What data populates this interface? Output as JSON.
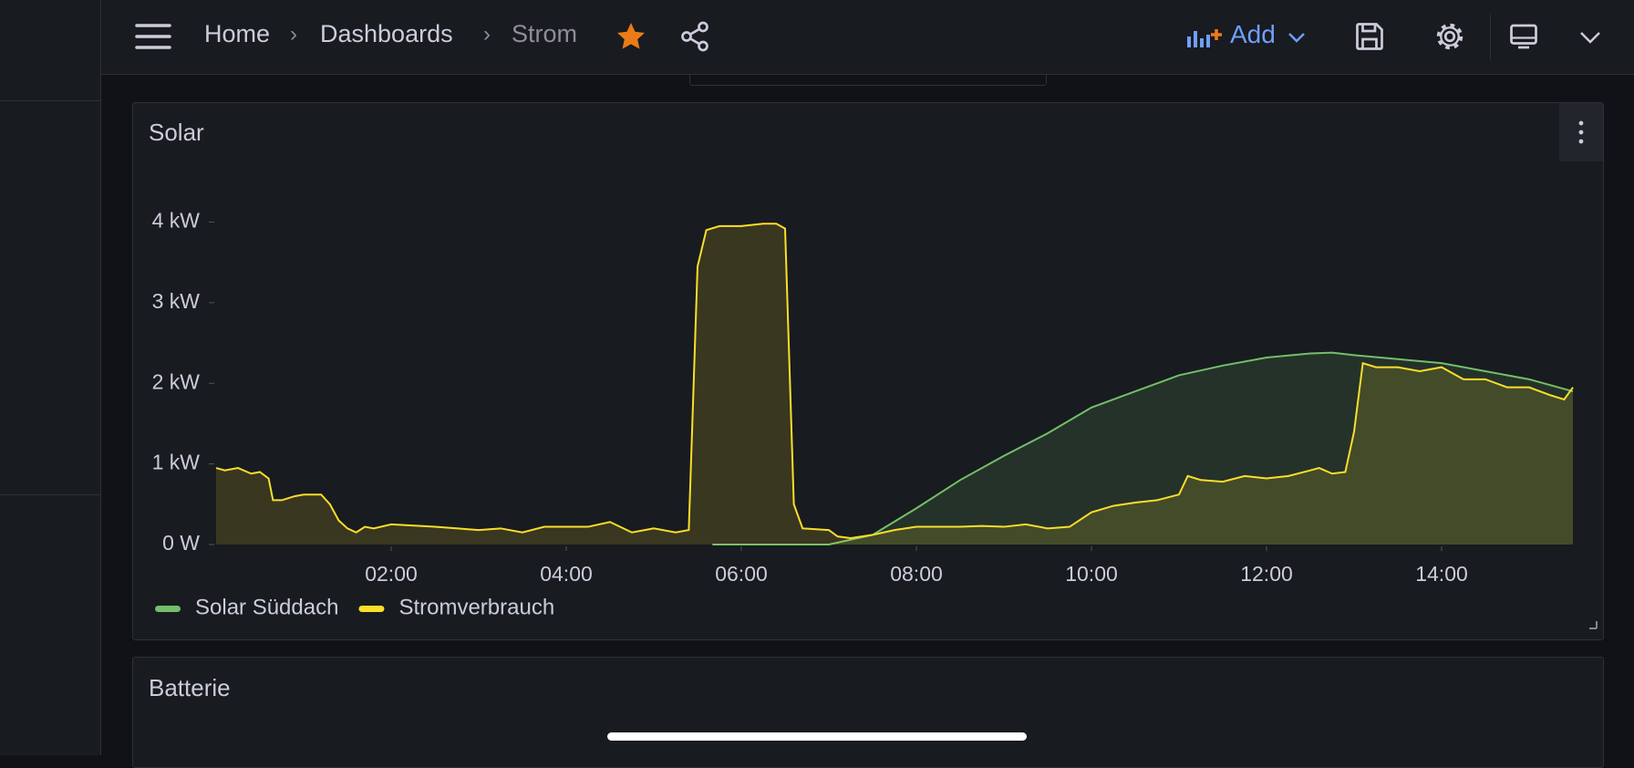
{
  "header": {
    "breadcrumbs": [
      "Home",
      "Dashboards",
      "Strom"
    ],
    "add": "Add"
  },
  "panels": {
    "second_title": "Batterie"
  },
  "chart_data": {
    "type": "line",
    "title": "Solar",
    "xlim": [
      0,
      15.5
    ],
    "xticks": [
      {
        "value": 2,
        "label": "02:00"
      },
      {
        "value": 4,
        "label": "04:00"
      },
      {
        "value": 6,
        "label": "06:00"
      },
      {
        "value": 8,
        "label": "08:00"
      },
      {
        "value": 10,
        "label": "10:00"
      },
      {
        "value": 12,
        "label": "12:00"
      },
      {
        "value": 14,
        "label": "14:00"
      }
    ],
    "ylim": [
      0,
      4.3
    ],
    "yticks": [
      {
        "value": 0,
        "label": "0 W"
      },
      {
        "value": 1,
        "label": "1 kW"
      },
      {
        "value": 2,
        "label": "2 kW"
      },
      {
        "value": 3,
        "label": "3 kW"
      },
      {
        "value": 4,
        "label": "4 kW"
      }
    ],
    "legend": "bottom-left",
    "series": [
      {
        "name": "Solar Süddach",
        "color": "#73bf69",
        "x": [
          5.67,
          6.0,
          6.5,
          7.0,
          7.5,
          8.0,
          8.5,
          9.0,
          9.5,
          10.0,
          10.5,
          11.0,
          11.5,
          12.0,
          12.5,
          12.75,
          13.0,
          13.5,
          14.0,
          14.5,
          15.0,
          15.5
        ],
        "values": [
          0,
          0,
          0,
          0,
          0.12,
          0.45,
          0.8,
          1.1,
          1.38,
          1.7,
          1.9,
          2.1,
          2.22,
          2.32,
          2.37,
          2.38,
          2.35,
          2.3,
          2.25,
          2.15,
          2.05,
          1.9
        ]
      },
      {
        "name": "Stromverbrauch",
        "color": "#fade2a",
        "x": [
          0,
          0.1,
          0.25,
          0.4,
          0.5,
          0.6,
          0.65,
          0.75,
          0.9,
          1.0,
          1.2,
          1.3,
          1.4,
          1.5,
          1.6,
          1.7,
          1.8,
          2.0,
          2.5,
          3.0,
          3.25,
          3.5,
          3.75,
          4.0,
          4.25,
          4.5,
          4.75,
          5.0,
          5.25,
          5.4,
          5.5,
          5.6,
          5.75,
          6.0,
          6.25,
          6.4,
          6.5,
          6.6,
          6.7,
          7.0,
          7.1,
          7.25,
          7.5,
          7.75,
          8.0,
          8.25,
          8.5,
          8.75,
          9.0,
          9.25,
          9.5,
          9.75,
          10.0,
          10.25,
          10.5,
          10.75,
          11.0,
          11.1,
          11.25,
          11.5,
          11.75,
          12.0,
          12.25,
          12.5,
          12.6,
          12.75,
          12.9,
          13.0,
          13.1,
          13.25,
          13.5,
          13.75,
          14.0,
          14.25,
          14.5,
          14.75,
          15.0,
          15.25,
          15.4,
          15.5
        ],
        "values": [
          0.95,
          0.92,
          0.95,
          0.88,
          0.9,
          0.82,
          0.55,
          0.55,
          0.6,
          0.62,
          0.62,
          0.5,
          0.3,
          0.2,
          0.15,
          0.22,
          0.2,
          0.25,
          0.22,
          0.18,
          0.2,
          0.15,
          0.22,
          0.22,
          0.22,
          0.28,
          0.15,
          0.2,
          0.15,
          0.18,
          3.45,
          3.9,
          3.95,
          3.95,
          3.98,
          3.98,
          3.92,
          0.5,
          0.2,
          0.18,
          0.1,
          0.08,
          0.12,
          0.18,
          0.22,
          0.22,
          0.22,
          0.23,
          0.22,
          0.25,
          0.2,
          0.22,
          0.4,
          0.48,
          0.52,
          0.55,
          0.62,
          0.85,
          0.8,
          0.78,
          0.85,
          0.82,
          0.85,
          0.92,
          0.95,
          0.88,
          0.9,
          1.4,
          2.25,
          2.2,
          2.2,
          2.15,
          2.2,
          2.05,
          2.05,
          1.95,
          1.95,
          1.85,
          1.8,
          1.95
        ]
      }
    ]
  }
}
